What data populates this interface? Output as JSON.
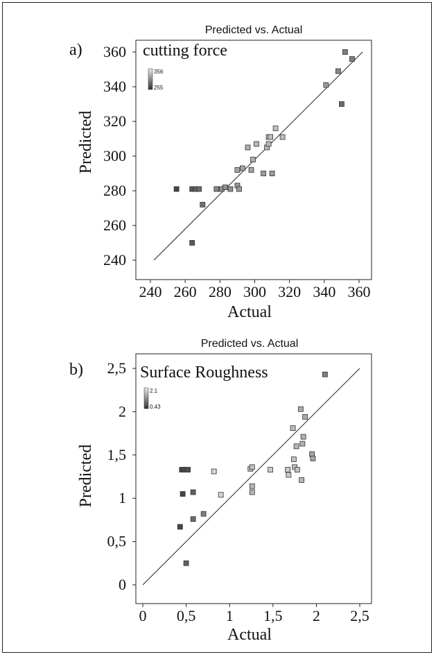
{
  "chart_data": [
    {
      "type": "scatter",
      "panel_label": "a)",
      "title": "Predicted vs. Actual",
      "annotation": "cutting force",
      "xlabel": "Actual",
      "ylabel": "Predicted",
      "xlim": [
        240,
        360
      ],
      "ylim": [
        240,
        360
      ],
      "xticks": [
        "240",
        "260",
        "280",
        "300",
        "320",
        "340",
        "360"
      ],
      "yticks": [
        "240",
        "260",
        "280",
        "300",
        "320",
        "340",
        "360"
      ],
      "legend": {
        "high": "356",
        "low": "255",
        "placement": "top-left"
      },
      "reference_line": [
        [
          242,
          240
        ],
        [
          362,
          360
        ]
      ],
      "points": [
        {
          "x": 255,
          "y": 281,
          "shade": 0.15
        },
        {
          "x": 264,
          "y": 250,
          "shade": 0.25
        },
        {
          "x": 264,
          "y": 281,
          "shade": 0.25
        },
        {
          "x": 266,
          "y": 281,
          "shade": 0.3
        },
        {
          "x": 268,
          "y": 281,
          "shade": 0.35
        },
        {
          "x": 270,
          "y": 272,
          "shade": 0.4
        },
        {
          "x": 278,
          "y": 281,
          "shade": 0.5
        },
        {
          "x": 281,
          "y": 281,
          "shade": 0.55
        },
        {
          "x": 283,
          "y": 282,
          "shade": 0.55
        },
        {
          "x": 286,
          "y": 281,
          "shade": 0.55
        },
        {
          "x": 290,
          "y": 283,
          "shade": 0.6
        },
        {
          "x": 291,
          "y": 281,
          "shade": 0.6
        },
        {
          "x": 290,
          "y": 292,
          "shade": 0.65
        },
        {
          "x": 293,
          "y": 293,
          "shade": 0.65
        },
        {
          "x": 296,
          "y": 305,
          "shade": 0.7
        },
        {
          "x": 298,
          "y": 292,
          "shade": 0.65
        },
        {
          "x": 299,
          "y": 298,
          "shade": 0.7
        },
        {
          "x": 301,
          "y": 307,
          "shade": 0.75
        },
        {
          "x": 305,
          "y": 290,
          "shade": 0.6
        },
        {
          "x": 307,
          "y": 305,
          "shade": 0.75
        },
        {
          "x": 308,
          "y": 307,
          "shade": 0.75
        },
        {
          "x": 308,
          "y": 311,
          "shade": 0.78
        },
        {
          "x": 309,
          "y": 311,
          "shade": 0.78
        },
        {
          "x": 310,
          "y": 290,
          "shade": 0.6
        },
        {
          "x": 312,
          "y": 316,
          "shade": 0.8
        },
        {
          "x": 316,
          "y": 311,
          "shade": 0.78
        },
        {
          "x": 341,
          "y": 341,
          "shade": 0.6
        },
        {
          "x": 348,
          "y": 349,
          "shade": 0.5
        },
        {
          "x": 350,
          "y": 330,
          "shade": 0.35
        },
        {
          "x": 352,
          "y": 360,
          "shade": 0.45
        },
        {
          "x": 356,
          "y": 356,
          "shade": 0.45
        }
      ]
    },
    {
      "type": "scatter",
      "panel_label": "b)",
      "title": "Predicted vs. Actual",
      "annotation": "Surface Roughness",
      "xlabel": "Actual",
      "ylabel": "Predicted",
      "xlim": [
        0,
        2.5
      ],
      "ylim": [
        0,
        2.5
      ],
      "xticks": [
        "0",
        "0,5",
        "1",
        "1,5",
        "2",
        "2,5"
      ],
      "yticks": [
        "0",
        "0,5",
        "1",
        "1,5",
        "2",
        "2,5"
      ],
      "legend": {
        "high": "2.1",
        "low": "0.43",
        "placement": "top-left"
      },
      "reference_line": [
        [
          0,
          0
        ],
        [
          2.5,
          2.5
        ]
      ],
      "points": [
        {
          "x": 0.43,
          "y": 0.67,
          "shade": 0.15
        },
        {
          "x": 0.45,
          "y": 1.33,
          "shade": 0.15
        },
        {
          "x": 0.46,
          "y": 1.05,
          "shade": 0.15
        },
        {
          "x": 0.48,
          "y": 1.33,
          "shade": 0.18
        },
        {
          "x": 0.5,
          "y": 0.25,
          "shade": 0.3
        },
        {
          "x": 0.52,
          "y": 1.33,
          "shade": 0.2
        },
        {
          "x": 0.58,
          "y": 1.07,
          "shade": 0.3
        },
        {
          "x": 0.58,
          "y": 0.76,
          "shade": 0.35
        },
        {
          "x": 0.7,
          "y": 0.82,
          "shade": 0.45
        },
        {
          "x": 0.82,
          "y": 1.31,
          "shade": 0.9
        },
        {
          "x": 0.9,
          "y": 1.04,
          "shade": 0.9
        },
        {
          "x": 1.24,
          "y": 1.34,
          "shade": 0.8
        },
        {
          "x": 1.26,
          "y": 1.36,
          "shade": 0.8
        },
        {
          "x": 1.26,
          "y": 1.14,
          "shade": 0.75
        },
        {
          "x": 1.26,
          "y": 1.07,
          "shade": 0.75
        },
        {
          "x": 1.47,
          "y": 1.33,
          "shade": 0.85
        },
        {
          "x": 1.67,
          "y": 1.33,
          "shade": 0.85
        },
        {
          "x": 1.68,
          "y": 1.27,
          "shade": 0.85
        },
        {
          "x": 1.73,
          "y": 1.81,
          "shade": 0.78
        },
        {
          "x": 1.74,
          "y": 1.45,
          "shade": 0.8
        },
        {
          "x": 1.75,
          "y": 1.36,
          "shade": 0.8
        },
        {
          "x": 1.77,
          "y": 1.6,
          "shade": 0.75
        },
        {
          "x": 1.78,
          "y": 1.33,
          "shade": 0.8
        },
        {
          "x": 1.82,
          "y": 2.03,
          "shade": 0.7
        },
        {
          "x": 1.83,
          "y": 1.21,
          "shade": 0.75
        },
        {
          "x": 1.84,
          "y": 1.63,
          "shade": 0.72
        },
        {
          "x": 1.85,
          "y": 1.71,
          "shade": 0.72
        },
        {
          "x": 1.87,
          "y": 1.94,
          "shade": 0.7
        },
        {
          "x": 1.95,
          "y": 1.51,
          "shade": 0.65
        },
        {
          "x": 1.96,
          "y": 1.46,
          "shade": 0.65
        },
        {
          "x": 2.1,
          "y": 2.43,
          "shade": 0.45
        }
      ]
    }
  ]
}
